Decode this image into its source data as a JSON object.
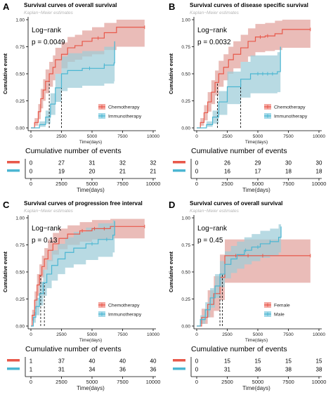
{
  "colors": {
    "red": "#e8584a",
    "red_fill": "#f4a9a3",
    "blue": "#4bb6d2",
    "blue_fill": "#a3d9e8",
    "gray_fill": "#b0b0b0"
  },
  "chart_data": [
    {
      "panel": "A",
      "type": "line",
      "title": "Survival curves of overall survival",
      "subtitle": "Kaplan−Meier estimates",
      "xlabel": "Time(days)",
      "ylabel": "Cumulative event",
      "xlim": [
        0,
        10000
      ],
      "ylim": [
        0,
        1
      ],
      "xticks": [
        0,
        2500,
        5000,
        7500,
        10000
      ],
      "yticks": [
        "0.00",
        "0.25",
        "0.50",
        "0.75",
        "1.00"
      ],
      "logrank_label": "Log−rank",
      "pvalue_label": "p = 0.0049",
      "legend_position": "bottom-right",
      "medians": [
        1500,
        2500
      ],
      "series": [
        {
          "name": "Chemotherapy",
          "color": "red",
          "x": [
            0,
            300,
            600,
            800,
            1000,
            1200,
            1500,
            1800,
            2000,
            2500,
            3000,
            3600,
            4200,
            5000,
            6000,
            7000,
            9300
          ],
          "y": [
            0,
            0.05,
            0.15,
            0.27,
            0.35,
            0.43,
            0.5,
            0.56,
            0.63,
            0.68,
            0.74,
            0.76,
            0.8,
            0.83,
            0.88,
            0.93,
            0.93
          ],
          "lower": [
            0,
            0.02,
            0.08,
            0.18,
            0.25,
            0.32,
            0.38,
            0.44,
            0.5,
            0.55,
            0.61,
            0.63,
            0.66,
            0.68,
            0.72,
            0.75,
            0.75
          ],
          "upper": [
            0,
            0.09,
            0.22,
            0.36,
            0.45,
            0.54,
            0.61,
            0.67,
            0.74,
            0.79,
            0.84,
            0.86,
            0.9,
            0.93,
            0.97,
            1.0,
            1.0
          ],
          "censor_x": [
            5500,
            9300
          ]
        },
        {
          "name": "Immunotherapy",
          "color": "blue",
          "x": [
            0,
            700,
            1200,
            1600,
            2000,
            2500,
            3000,
            4200,
            6000,
            6800,
            6850
          ],
          "y": [
            0,
            0.03,
            0.1,
            0.22,
            0.37,
            0.5,
            0.53,
            0.55,
            0.58,
            0.6,
            0.8
          ],
          "lower": [
            0,
            0.01,
            0.04,
            0.12,
            0.24,
            0.34,
            0.37,
            0.39,
            0.41,
            0.43,
            0.3
          ],
          "upper": [
            0,
            0.06,
            0.16,
            0.32,
            0.5,
            0.66,
            0.69,
            0.71,
            0.75,
            0.77,
            1.0
          ],
          "censor_x": [
            4800,
            6000
          ]
        }
      ],
      "risk_table": {
        "title": "Cumulative number of events",
        "xlabel": "Time(days)",
        "rows": [
          {
            "color": "red",
            "values": [
              "0",
              "27",
              "31",
              "32",
              "32"
            ]
          },
          {
            "color": "blue",
            "values": [
              "0",
              "19",
              "20",
              "21",
              "21"
            ]
          }
        ]
      }
    },
    {
      "panel": "B",
      "type": "line",
      "title": "Survival curves of disease specific survival",
      "subtitle": "Kaplan−Meier estimates",
      "xlabel": "Time(days)",
      "ylabel": "Cumulative event",
      "xlim": [
        0,
        10000
      ],
      "ylim": [
        0,
        1
      ],
      "xticks": [
        0,
        2500,
        5000,
        7500,
        10000
      ],
      "yticks": [
        "0.00",
        "0.25",
        "0.50",
        "0.75",
        "1.00"
      ],
      "logrank_label": "Log−rank",
      "pvalue_label": "p = 0.0032",
      "legend_position": "bottom-right",
      "medians": [
        1700,
        3600
      ],
      "series": [
        {
          "name": "Chemotherapy",
          "color": "red",
          "x": [
            0,
            300,
            600,
            900,
            1200,
            1500,
            1800,
            2200,
            2600,
            3000,
            3600,
            4200,
            4800,
            5600,
            6400,
            7000,
            9300
          ],
          "y": [
            0,
            0.05,
            0.14,
            0.24,
            0.33,
            0.42,
            0.5,
            0.56,
            0.63,
            0.68,
            0.74,
            0.8,
            0.84,
            0.85,
            0.87,
            0.91,
            0.91
          ],
          "lower": [
            0,
            0.02,
            0.07,
            0.15,
            0.22,
            0.3,
            0.38,
            0.44,
            0.5,
            0.55,
            0.61,
            0.66,
            0.7,
            0.71,
            0.72,
            0.74,
            0.74
          ],
          "upper": [
            0,
            0.09,
            0.21,
            0.33,
            0.44,
            0.53,
            0.62,
            0.68,
            0.75,
            0.8,
            0.86,
            0.92,
            0.96,
            0.97,
            0.99,
            1.0,
            1.0
          ],
          "censor_x": [
            5200,
            5800,
            9300
          ]
        },
        {
          "name": "Immunotherapy",
          "color": "blue",
          "x": [
            0,
            800,
            1300,
            1800,
            2500,
            3600,
            4400,
            6600,
            6850
          ],
          "y": [
            0,
            0.03,
            0.1,
            0.24,
            0.38,
            0.45,
            0.5,
            0.52,
            0.75
          ],
          "lower": [
            0,
            0.01,
            0.04,
            0.12,
            0.22,
            0.28,
            0.32,
            0.33,
            0.3
          ],
          "upper": [
            0,
            0.06,
            0.16,
            0.34,
            0.52,
            0.61,
            0.67,
            0.7,
            1.0
          ],
          "censor_x": [
            5000,
            5400,
            5800,
            6200
          ]
        }
      ],
      "risk_table": {
        "title": "Cumulative number of events",
        "xlabel": "Time(days)",
        "rows": [
          {
            "color": "red",
            "values": [
              "0",
              "26",
              "29",
              "30",
              "30"
            ]
          },
          {
            "color": "blue",
            "values": [
              "0",
              "16",
              "17",
              "18",
              "18"
            ]
          }
        ]
      }
    },
    {
      "panel": "C",
      "type": "line",
      "title": "Survival curves of progression free interval",
      "subtitle": "Kaplan−Meier estimates",
      "xlabel": "Time(days)",
      "ylabel": "Cumulative event",
      "xlim": [
        0,
        10000
      ],
      "ylim": [
        0,
        1
      ],
      "xticks": [
        0,
        2500,
        5000,
        7500,
        10000
      ],
      "yticks": [
        "0.00",
        "0.25",
        "0.50",
        "0.75",
        "1.00"
      ],
      "logrank_label": "Log−rank",
      "pvalue_label": "p = 0.13",
      "legend_position": "bottom-right",
      "medians": [
        800,
        1100
      ],
      "series": [
        {
          "name": "Chemotherapy",
          "color": "red",
          "x": [
            0,
            100,
            300,
            500,
            700,
            900,
            1100,
            1400,
            1800,
            2300,
            3000,
            4000,
            5000,
            6500,
            9300
          ],
          "y": [
            0,
            0.1,
            0.24,
            0.38,
            0.47,
            0.55,
            0.62,
            0.7,
            0.76,
            0.81,
            0.85,
            0.88,
            0.9,
            0.92,
            0.92
          ],
          "lower": [
            0,
            0.05,
            0.16,
            0.28,
            0.37,
            0.45,
            0.52,
            0.6,
            0.66,
            0.71,
            0.75,
            0.78,
            0.8,
            0.81,
            0.81
          ],
          "upper": [
            0,
            0.15,
            0.32,
            0.48,
            0.57,
            0.65,
            0.72,
            0.8,
            0.86,
            0.9,
            0.93,
            0.96,
            0.98,
            0.99,
            0.99
          ],
          "censor_x": [
            4200,
            5200,
            6000,
            9300
          ]
        },
        {
          "name": "Immunotherapy",
          "color": "blue",
          "x": [
            0,
            200,
            400,
            700,
            1000,
            1300,
            1700,
            2200,
            2800,
            3500,
            4500,
            5500,
            6700,
            6850
          ],
          "y": [
            0,
            0.08,
            0.18,
            0.3,
            0.4,
            0.48,
            0.56,
            0.62,
            0.68,
            0.72,
            0.76,
            0.8,
            0.84,
            0.97
          ],
          "lower": [
            0,
            0.03,
            0.1,
            0.19,
            0.28,
            0.35,
            0.42,
            0.48,
            0.54,
            0.57,
            0.61,
            0.64,
            0.68,
            0.6
          ],
          "upper": [
            0,
            0.13,
            0.26,
            0.41,
            0.52,
            0.61,
            0.7,
            0.76,
            0.82,
            0.87,
            0.91,
            0.95,
            0.98,
            1.0
          ],
          "censor_x": [
            5000,
            6200
          ]
        }
      ],
      "risk_table": {
        "title": "Cumulative number of events",
        "xlabel": "Time(days)",
        "rows": [
          {
            "color": "red",
            "values": [
              "1",
              "37",
              "40",
              "40",
              "40"
            ]
          },
          {
            "color": "blue",
            "values": [
              "1",
              "31",
              "34",
              "36",
              "36"
            ]
          }
        ]
      }
    },
    {
      "panel": "D",
      "type": "line",
      "title": "Survival curves of overall survival",
      "subtitle": "Kaplan−Meier estimates",
      "xlabel": "Time(days)",
      "ylabel": "Cumulative event",
      "xlim": [
        0,
        10000
      ],
      "ylim": [
        0,
        1
      ],
      "xticks": [
        0,
        2500,
        5000,
        7500,
        10000
      ],
      "yticks": [
        "0.00",
        "0.25",
        "0.50",
        "0.75",
        "1.00"
      ],
      "logrank_label": "Log−rank",
      "pvalue_label": "p = 0.45",
      "legend_position": "bottom-right",
      "medians": [
        1900,
        2100
      ],
      "series": [
        {
          "name": "Female",
          "color": "red",
          "x": [
            0,
            400,
            900,
            1400,
            1900,
            2300,
            9300
          ],
          "y": [
            0,
            0.08,
            0.2,
            0.3,
            0.45,
            0.65,
            0.65
          ],
          "lower": [
            0,
            0.02,
            0.08,
            0.14,
            0.24,
            0.4,
            0.4
          ],
          "upper": [
            0,
            0.16,
            0.33,
            0.46,
            0.66,
            0.8,
            0.8
          ],
          "censor_x": [
            3200,
            4200,
            5400,
            9300
          ]
        },
        {
          "name": "Male",
          "color": "blue",
          "x": [
            0,
            300,
            700,
            1100,
            1500,
            1900,
            2300,
            2800,
            3300,
            3900,
            4500,
            5200,
            6000,
            6700,
            6900
          ],
          "y": [
            0,
            0.06,
            0.15,
            0.26,
            0.37,
            0.48,
            0.57,
            0.62,
            0.66,
            0.7,
            0.73,
            0.76,
            0.78,
            0.82,
            0.92
          ],
          "lower": [
            0,
            0.02,
            0.08,
            0.17,
            0.26,
            0.36,
            0.44,
            0.49,
            0.53,
            0.57,
            0.6,
            0.63,
            0.65,
            0.68,
            0.72
          ],
          "upper": [
            0,
            0.1,
            0.22,
            0.35,
            0.48,
            0.6,
            0.69,
            0.74,
            0.78,
            0.82,
            0.85,
            0.88,
            0.9,
            0.94,
            1.0
          ],
          "censor_x": [
            4000,
            5000,
            6000
          ]
        }
      ],
      "risk_table": {
        "title": "Cumulative number of events",
        "xlabel": "Time(days)",
        "rows": [
          {
            "color": "red",
            "values": [
              "0",
              "15",
              "15",
              "15",
              "15"
            ]
          },
          {
            "color": "blue",
            "values": [
              "0",
              "31",
              "36",
              "38",
              "38"
            ]
          }
        ]
      }
    }
  ]
}
